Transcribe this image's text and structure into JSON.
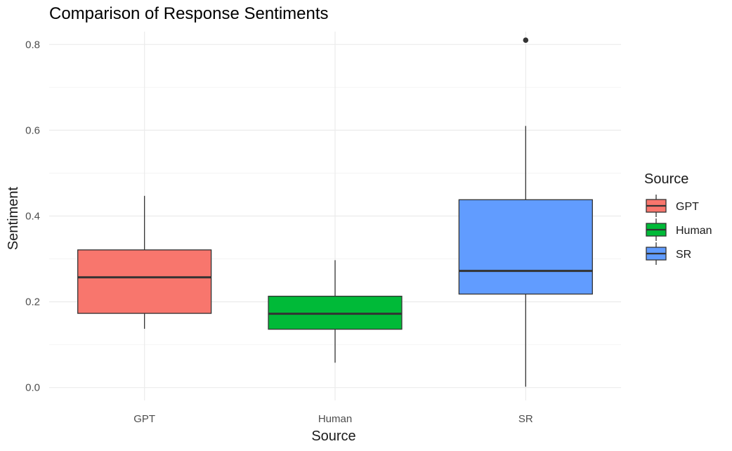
{
  "chart_data": {
    "type": "boxplot",
    "title": "Comparison of Response Sentiments",
    "xlabel": "Source",
    "ylabel": "Sentiment",
    "ylim": [
      -0.03,
      0.83
    ],
    "y_ticks": [
      0.0,
      0.2,
      0.4,
      0.6,
      0.8
    ],
    "y_tick_labels": [
      "0.0",
      "0.2",
      "0.4",
      "0.6",
      "0.8"
    ],
    "grid": true,
    "legend": {
      "title": "Source",
      "position": "right",
      "entries": [
        "GPT",
        "Human",
        "SR"
      ]
    },
    "categories": [
      "GPT",
      "Human",
      "SR"
    ],
    "boxes": [
      {
        "name": "GPT",
        "color": "#F8766D",
        "whisker_low": 0.137,
        "q1": 0.173,
        "median": 0.257,
        "q3": 0.321,
        "whisker_high": 0.447,
        "outliers": []
      },
      {
        "name": "Human",
        "color": "#00BA38",
        "whisker_low": 0.058,
        "q1": 0.136,
        "median": 0.172,
        "q3": 0.213,
        "whisker_high": 0.297,
        "outliers": []
      },
      {
        "name": "SR",
        "color": "#619CFF",
        "whisker_low": 0.002,
        "q1": 0.218,
        "median": 0.272,
        "q3": 0.438,
        "whisker_high": 0.61,
        "outliers": [
          0.81
        ]
      }
    ]
  }
}
